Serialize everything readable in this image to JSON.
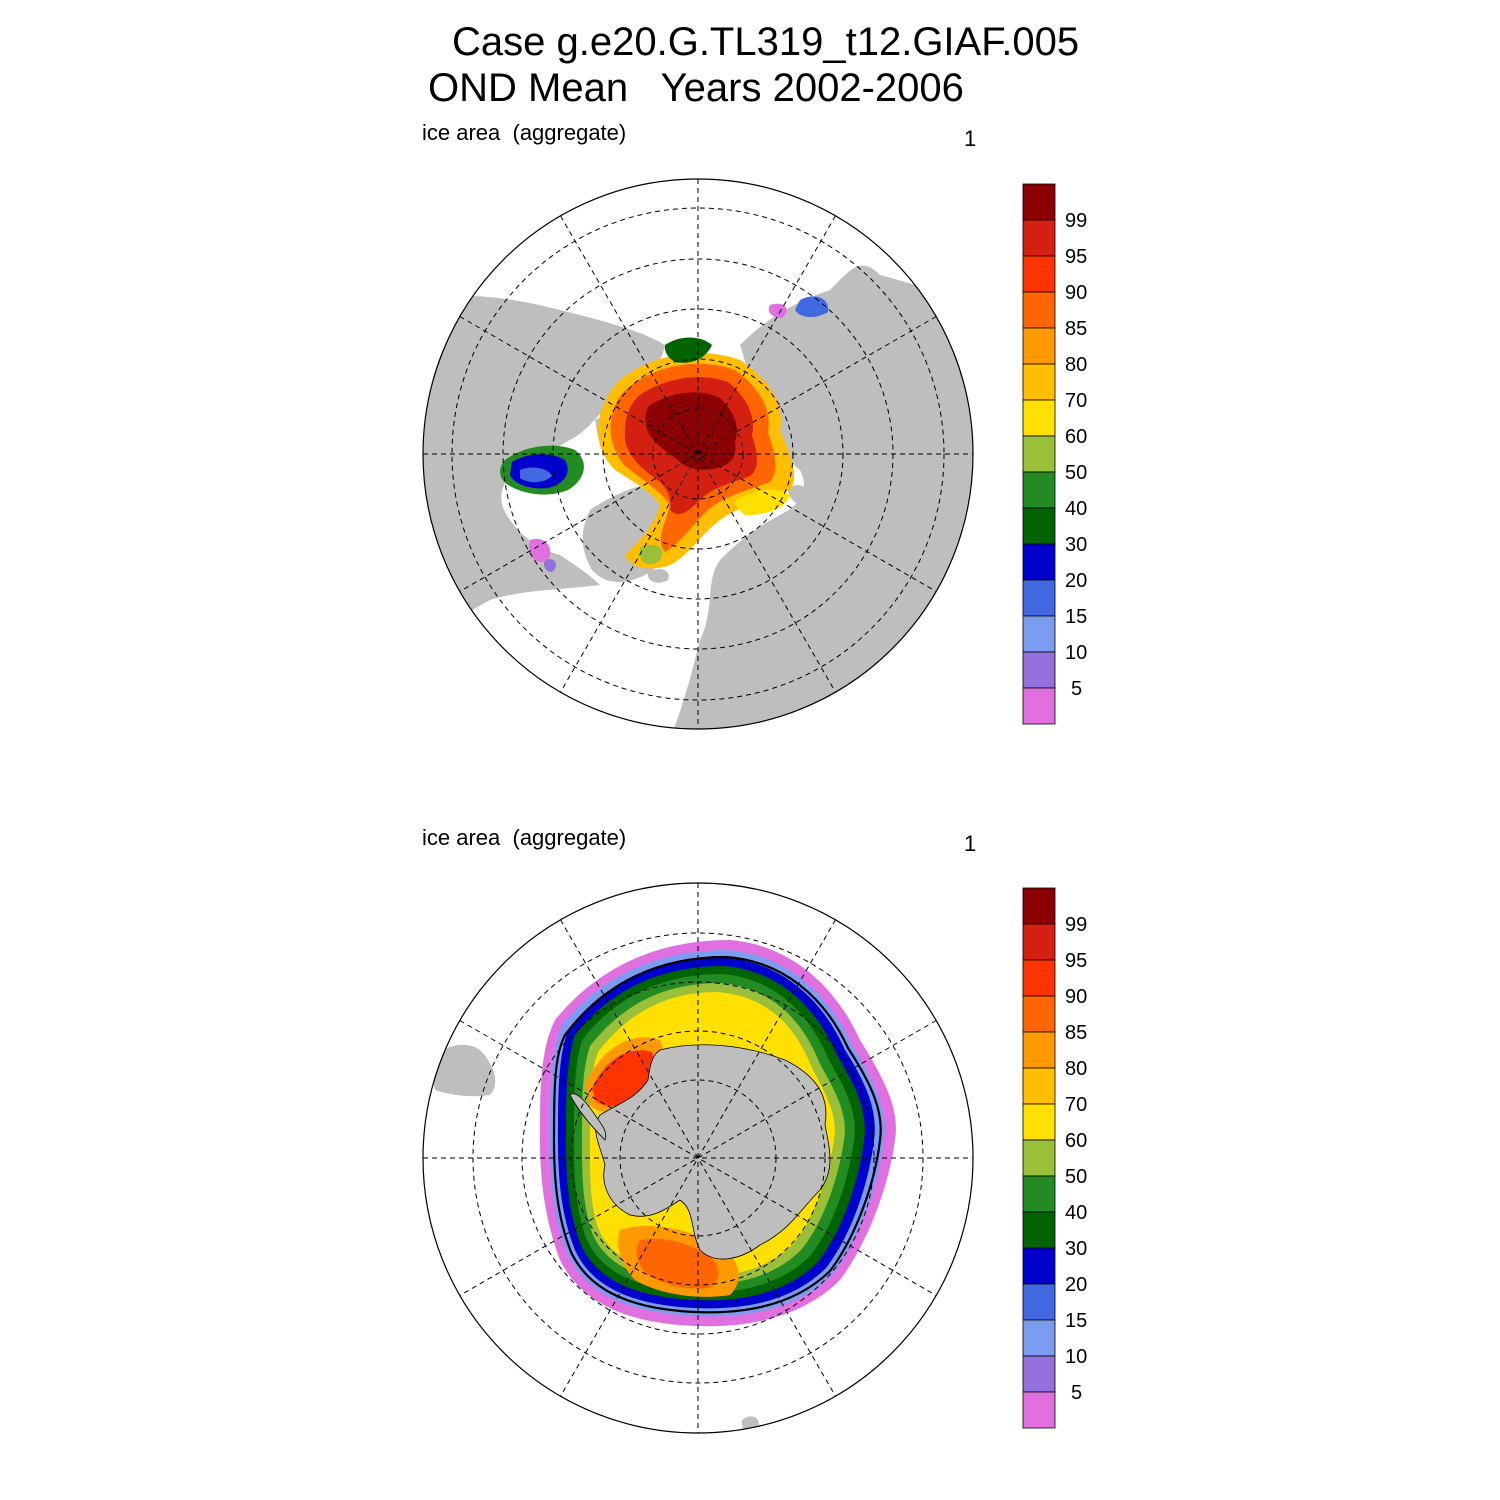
{
  "figure": {
    "title_line1": "Case g.e20.G.TL319_t12.GIAF.005",
    "title_line2": "OND Mean   Years 2002-2006"
  },
  "panels": [
    {
      "id": "north",
      "hemisphere": "Northern Hemisphere",
      "label": "ice area  (aggregate)",
      "units": "1"
    },
    {
      "id": "south",
      "hemisphere": "Southern Hemisphere",
      "label": "ice area  (aggregate)",
      "units": "1"
    }
  ],
  "colorbar": {
    "labels": [
      "99",
      "95",
      "90",
      "85",
      "80",
      "70",
      "60",
      "50",
      "40",
      "30",
      "20",
      "15",
      "10",
      "5"
    ],
    "colors": [
      "#8b0000",
      "#d42010",
      "#ff3300",
      "#ff6600",
      "#ff9900",
      "#ffbf00",
      "#ffe000",
      "#9abf38",
      "#228b22",
      "#006400",
      "#0000cd",
      "#4169e1",
      "#7b9cf0",
      "#9370db",
      "#e070e0"
    ]
  },
  "map_colors": {
    "land": "#bebebe",
    "ocean": "#ffffff",
    "grid": "#000000"
  }
}
